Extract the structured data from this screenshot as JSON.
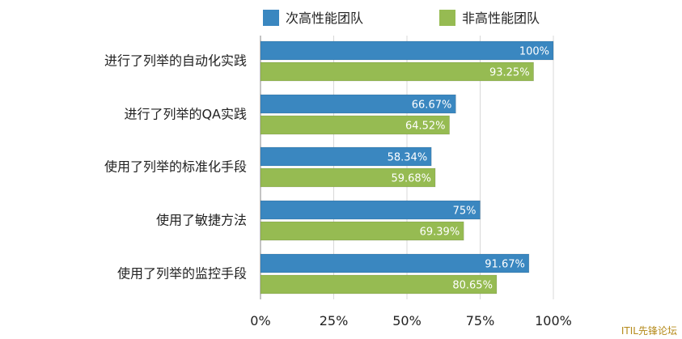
{
  "chart_data": {
    "type": "bar",
    "orientation": "horizontal",
    "categories": [
      "进行了列举的自动化实践",
      "进行了列举的QA实践",
      "使用了列举的标准化手段",
      "使用了敏捷方法",
      "使用了列举的监控手段"
    ],
    "series": [
      {
        "name": "次高性能团队",
        "color": "#3a87c0",
        "values": [
          100,
          66.67,
          58.34,
          75,
          91.67
        ],
        "labels": [
          "100%",
          "66.67%",
          "58.34%",
          "75%",
          "91.67%"
        ]
      },
      {
        "name": "非高性能团队",
        "color": "#96bb52",
        "values": [
          93.25,
          64.52,
          59.68,
          69.39,
          80.65
        ],
        "labels": [
          "93.25%",
          "64.52%",
          "59.68%",
          "69.39%",
          "80.65%"
        ]
      }
    ],
    "xlim": [
      0,
      100
    ],
    "x_ticks": [
      0,
      25,
      50,
      75,
      100
    ],
    "x_tick_labels": [
      "0%",
      "25%",
      "50%",
      "75%",
      "100%"
    ],
    "grid": true,
    "legend_position": "top"
  },
  "watermark": "ITIL先锋论坛"
}
